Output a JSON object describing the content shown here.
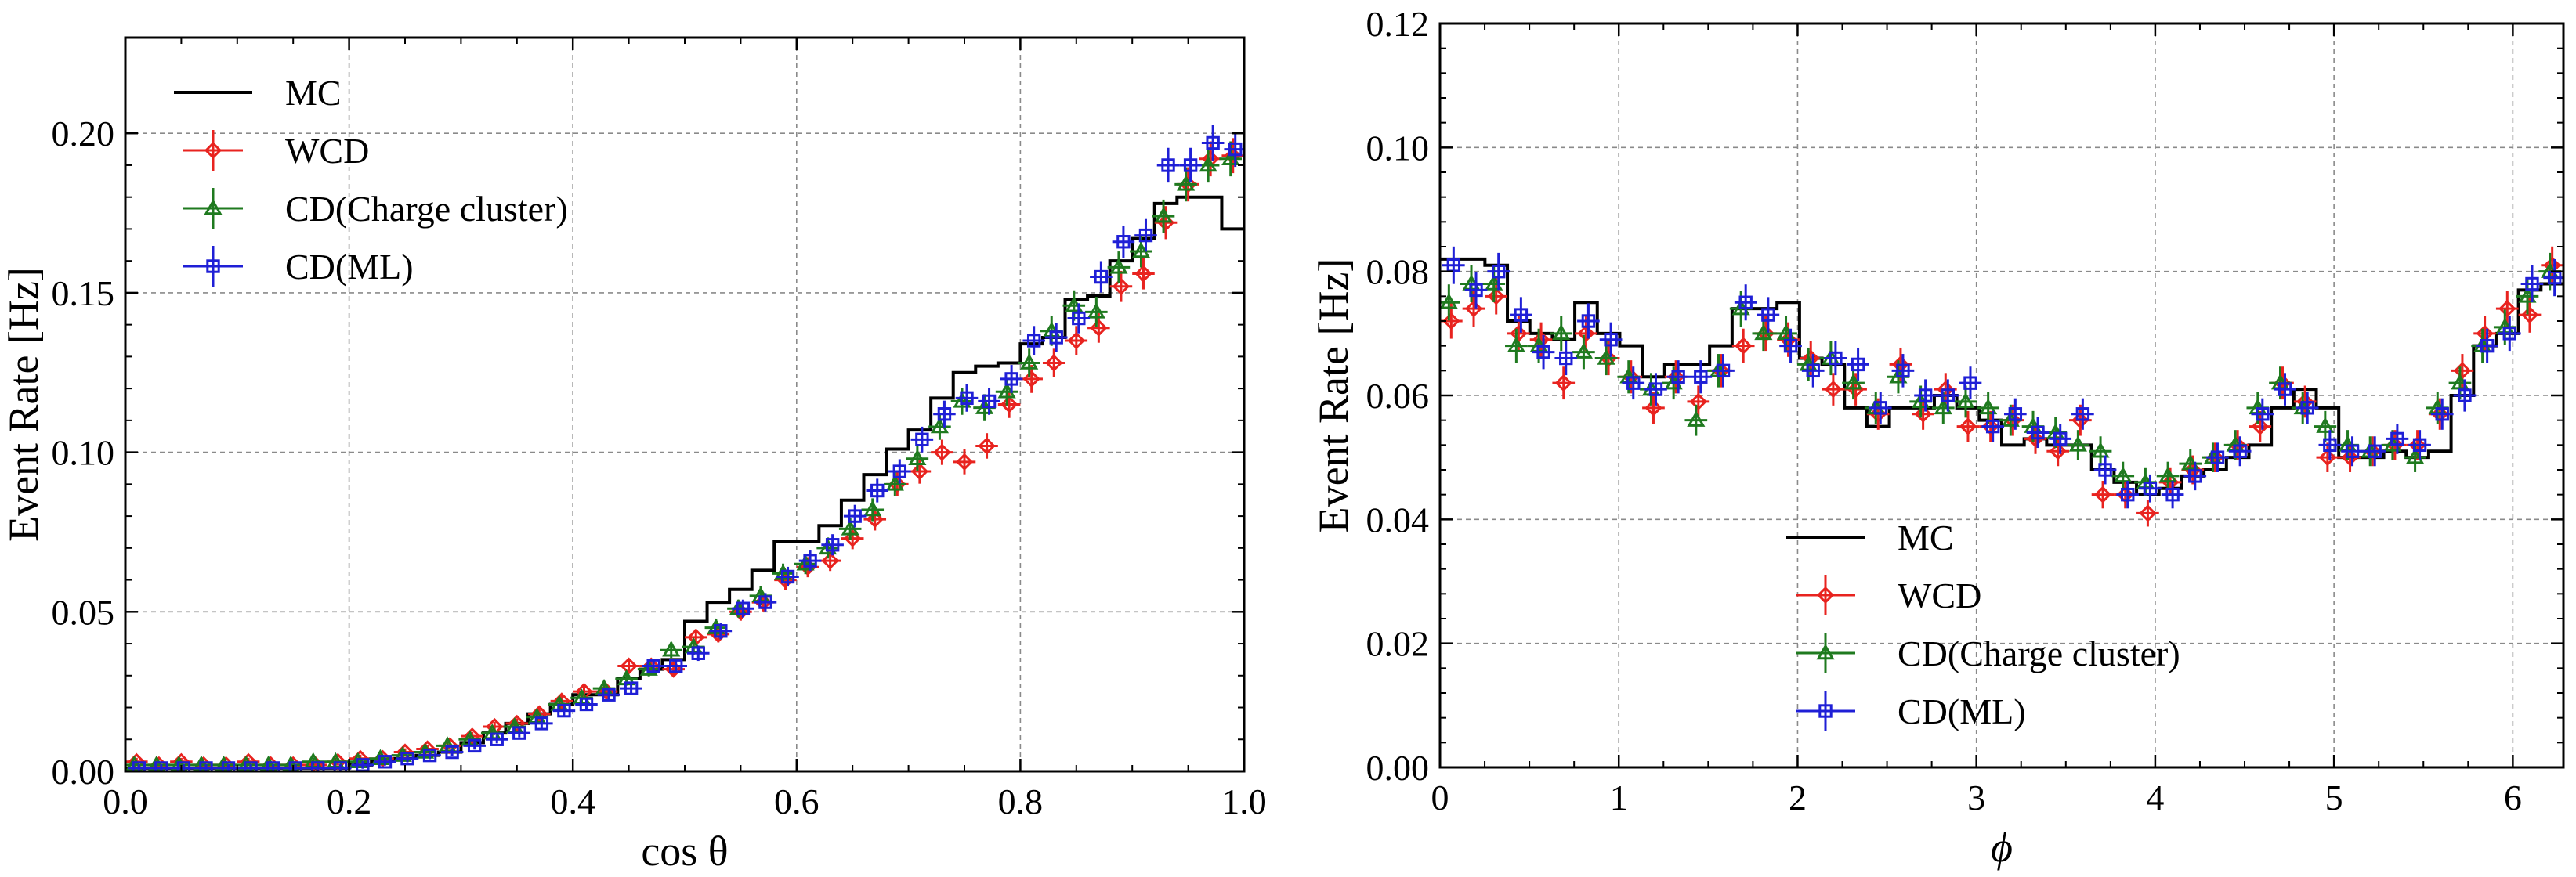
{
  "chart_data": [
    {
      "type": "line",
      "title": "",
      "xlabel": "cos θ",
      "ylabel": "Event Rate [Hz]",
      "xlim": [
        0.0,
        1.0
      ],
      "ylim": [
        0.0,
        0.23
      ],
      "xticks": [
        0.0,
        0.2,
        0.4,
        0.6,
        0.8,
        1.0
      ],
      "xtick_labels": [
        "0.0",
        "0.2",
        "0.4",
        "0.6",
        "0.8",
        "1.0"
      ],
      "yticks": [
        0.0,
        0.05,
        0.1,
        0.15,
        0.2
      ],
      "ytick_labels": [
        "0.00",
        "0.05",
        "0.10",
        "0.15",
        "0.20"
      ],
      "grid": true,
      "legend_position": "top-left",
      "bin_width": 0.02,
      "x": [
        0.01,
        0.03,
        0.05,
        0.07,
        0.09,
        0.11,
        0.13,
        0.15,
        0.17,
        0.19,
        0.21,
        0.23,
        0.25,
        0.27,
        0.29,
        0.31,
        0.33,
        0.35,
        0.37,
        0.39,
        0.41,
        0.43,
        0.45,
        0.47,
        0.49,
        0.51,
        0.53,
        0.55,
        0.57,
        0.59,
        0.61,
        0.63,
        0.65,
        0.67,
        0.69,
        0.71,
        0.73,
        0.75,
        0.77,
        0.79,
        0.81,
        0.83,
        0.85,
        0.87,
        0.89,
        0.91,
        0.93,
        0.95,
        0.97,
        0.99
      ],
      "series": [
        {
          "name": "MC",
          "kind": "step",
          "color": "#000000",
          "values": [
            0.001,
            0.001,
            0.001,
            0.001,
            0.001,
            0.001,
            0.001,
            0.001,
            0.001,
            0.001,
            0.002,
            0.003,
            0.004,
            0.005,
            0.006,
            0.009,
            0.012,
            0.015,
            0.018,
            0.021,
            0.024,
            0.024,
            0.029,
            0.032,
            0.035,
            0.047,
            0.053,
            0.057,
            0.063,
            0.072,
            0.072,
            0.077,
            0.085,
            0.093,
            0.101,
            0.107,
            0.117,
            0.125,
            0.127,
            0.128,
            0.134,
            0.136,
            0.148,
            0.149,
            0.16,
            0.167,
            0.178,
            0.18,
            0.18,
            0.17
          ]
        },
        {
          "name": "WCD",
          "kind": "points",
          "marker": "diamond",
          "color": "#e8231f",
          "values": [
            0.003,
            0.002,
            0.003,
            0.002,
            0.002,
            0.003,
            0.002,
            0.002,
            0.002,
            0.003,
            0.004,
            0.004,
            0.006,
            0.007,
            0.008,
            0.011,
            0.014,
            0.015,
            0.018,
            0.022,
            0.025,
            0.025,
            0.033,
            0.033,
            0.032,
            0.042,
            0.043,
            0.05,
            0.053,
            0.06,
            0.064,
            0.066,
            0.073,
            0.079,
            0.09,
            0.094,
            0.1,
            0.097,
            0.102,
            0.115,
            0.123,
            0.128,
            0.135,
            0.139,
            0.152,
            0.156,
            0.172,
            0.184,
            0.192,
            0.193
          ]
        },
        {
          "name": "CD(Charge cluster)",
          "kind": "points",
          "marker": "triangle",
          "color": "#1f7a1f",
          "values": [
            0.002,
            0.002,
            0.002,
            0.002,
            0.002,
            0.002,
            0.002,
            0.002,
            0.003,
            0.003,
            0.003,
            0.004,
            0.005,
            0.006,
            0.008,
            0.01,
            0.012,
            0.014,
            0.017,
            0.021,
            0.023,
            0.026,
            0.029,
            0.032,
            0.038,
            0.039,
            0.045,
            0.051,
            0.055,
            0.062,
            0.065,
            0.07,
            0.076,
            0.082,
            0.09,
            0.098,
            0.108,
            0.116,
            0.114,
            0.119,
            0.128,
            0.138,
            0.146,
            0.144,
            0.158,
            0.163,
            0.174,
            0.184,
            0.19,
            0.192
          ]
        },
        {
          "name": "CD(ML)",
          "kind": "points",
          "marker": "square",
          "color": "#1f1fd6",
          "values": [
            0.001,
            0.001,
            0.001,
            0.001,
            0.001,
            0.001,
            0.001,
            0.001,
            0.001,
            0.001,
            0.002,
            0.003,
            0.004,
            0.005,
            0.006,
            0.008,
            0.01,
            0.012,
            0.015,
            0.019,
            0.021,
            0.024,
            0.026,
            0.033,
            0.033,
            0.037,
            0.044,
            0.051,
            0.053,
            0.061,
            0.066,
            0.071,
            0.08,
            0.088,
            0.094,
            0.104,
            0.112,
            0.117,
            0.116,
            0.123,
            0.135,
            0.136,
            0.142,
            0.155,
            0.166,
            0.168,
            0.19,
            0.19,
            0.197,
            0.195
          ]
        }
      ]
    },
    {
      "type": "line",
      "title": "",
      "xlabel": "ϕ",
      "ylabel": "Event Rate [Hz]",
      "xlim": [
        0.0,
        6.2832
      ],
      "ylim": [
        0.0,
        0.12
      ],
      "xticks": [
        0,
        1,
        2,
        3,
        4,
        5,
        6
      ],
      "xtick_labels": [
        "0",
        "1",
        "2",
        "3",
        "4",
        "5",
        "6"
      ],
      "yticks": [
        0.0,
        0.02,
        0.04,
        0.06,
        0.08,
        0.1,
        0.12
      ],
      "ytick_labels": [
        "0.00",
        "0.02",
        "0.04",
        "0.06",
        "0.08",
        "0.10",
        "0.12"
      ],
      "grid": true,
      "legend_position": "bottom-center",
      "bin_width": 0.1257,
      "x": [
        0.0628,
        0.1885,
        0.3142,
        0.4398,
        0.5655,
        0.6912,
        0.8168,
        0.9425,
        1.0681,
        1.1938,
        1.3195,
        1.4451,
        1.5708,
        1.6965,
        1.8221,
        1.9478,
        2.0735,
        2.1991,
        2.3248,
        2.4504,
        2.5761,
        2.7018,
        2.8274,
        2.9531,
        3.0788,
        3.2044,
        3.3301,
        3.4558,
        3.5814,
        3.7071,
        3.8327,
        3.9584,
        4.0841,
        4.2097,
        4.3354,
        4.4611,
        4.5867,
        4.7124,
        4.8381,
        4.9637,
        5.0894,
        5.215,
        5.3407,
        5.4664,
        5.592,
        5.7177,
        5.8434,
        5.969,
        6.0947,
        6.2204
      ],
      "series": [
        {
          "name": "MC",
          "kind": "step",
          "color": "#000000",
          "values": [
            0.082,
            0.082,
            0.081,
            0.072,
            0.07,
            0.069,
            0.075,
            0.07,
            0.068,
            0.063,
            0.065,
            0.065,
            0.068,
            0.074,
            0.074,
            0.075,
            0.066,
            0.065,
            0.058,
            0.055,
            0.058,
            0.058,
            0.06,
            0.058,
            0.056,
            0.052,
            0.053,
            0.052,
            0.052,
            0.048,
            0.046,
            0.044,
            0.045,
            0.047,
            0.048,
            0.05,
            0.052,
            0.058,
            0.061,
            0.058,
            0.05,
            0.05,
            0.051,
            0.05,
            0.051,
            0.06,
            0.068,
            0.07,
            0.077,
            0.078
          ]
        },
        {
          "name": "WCD",
          "kind": "points",
          "marker": "diamond",
          "color": "#e8231f",
          "values": [
            0.072,
            0.074,
            0.076,
            0.07,
            0.069,
            0.062,
            0.07,
            0.066,
            0.063,
            0.058,
            0.063,
            0.059,
            0.064,
            0.068,
            0.07,
            0.069,
            0.066,
            0.061,
            0.061,
            0.057,
            0.065,
            0.057,
            0.061,
            0.055,
            0.055,
            0.056,
            0.053,
            0.051,
            0.056,
            0.044,
            0.044,
            0.041,
            0.046,
            0.048,
            0.05,
            0.052,
            0.055,
            0.062,
            0.059,
            0.05,
            0.05,
            0.051,
            0.052,
            0.052,
            0.057,
            0.064,
            0.07,
            0.074,
            0.073,
            0.081
          ]
        },
        {
          "name": "CD(Charge cluster)",
          "kind": "points",
          "marker": "triangle",
          "color": "#1f7a1f",
          "values": [
            0.075,
            0.078,
            0.078,
            0.068,
            0.068,
            0.07,
            0.067,
            0.066,
            0.063,
            0.061,
            0.062,
            0.056,
            0.064,
            0.074,
            0.07,
            0.07,
            0.065,
            0.066,
            0.062,
            0.058,
            0.063,
            0.059,
            0.058,
            0.059,
            0.058,
            0.056,
            0.055,
            0.054,
            0.052,
            0.051,
            0.047,
            0.046,
            0.047,
            0.049,
            0.05,
            0.052,
            0.058,
            0.062,
            0.058,
            0.055,
            0.052,
            0.051,
            0.052,
            0.05,
            0.058,
            0.062,
            0.068,
            0.071,
            0.076,
            0.08
          ]
        },
        {
          "name": "CD(ML)",
          "kind": "points",
          "marker": "square",
          "color": "#1f1fd6",
          "values": [
            0.081,
            0.077,
            0.08,
            0.073,
            0.067,
            0.066,
            0.072,
            0.069,
            0.062,
            0.061,
            0.063,
            0.063,
            0.064,
            0.075,
            0.073,
            0.068,
            0.064,
            0.066,
            0.065,
            0.058,
            0.064,
            0.06,
            0.06,
            0.062,
            0.055,
            0.057,
            0.054,
            0.053,
            0.057,
            0.048,
            0.044,
            0.045,
            0.044,
            0.047,
            0.05,
            0.051,
            0.057,
            0.061,
            0.058,
            0.052,
            0.051,
            0.051,
            0.053,
            0.052,
            0.057,
            0.06,
            0.068,
            0.07,
            0.078,
            0.079
          ]
        }
      ]
    }
  ]
}
